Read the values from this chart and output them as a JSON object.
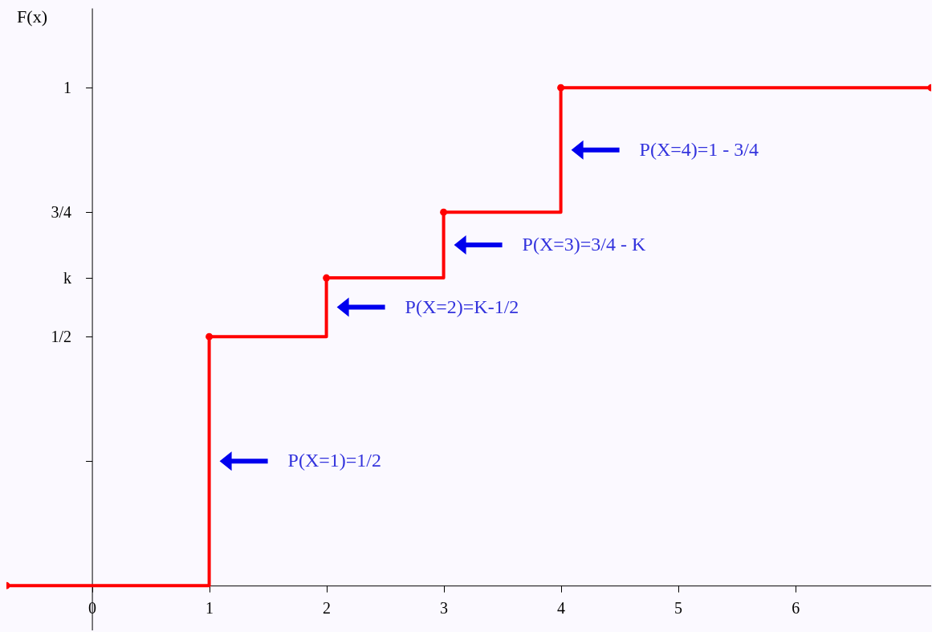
{
  "chart_data": {
    "type": "step",
    "ylabel": "F(x)",
    "x": [
      -0.73,
      1,
      2,
      3,
      4,
      7.16
    ],
    "series": [
      {
        "color": "#ff0000",
        "values": [
          0,
          0.5,
          0.618,
          0.75,
          1,
          1
        ]
      }
    ],
    "xlim": [
      -0.73,
      7.16
    ],
    "ylim": [
      -0.09,
      1.16
    ],
    "xticks": [
      0,
      1,
      2,
      3,
      4,
      5,
      6
    ],
    "yticks": [
      {
        "value": 0.25,
        "label": null
      },
      {
        "value": 0.5,
        "label": "1/2"
      },
      {
        "value": 0.618,
        "label": "k"
      },
      {
        "value": 0.75,
        "label": "3/4"
      },
      1
    ],
    "marker": "circle",
    "grid": false,
    "annotations": [
      "P(X=1)=1/2",
      "P(X=2)=K-1/2",
      "P(X=3)=3/4 - K",
      "P(X=4)=1 - 3/4"
    ]
  }
}
